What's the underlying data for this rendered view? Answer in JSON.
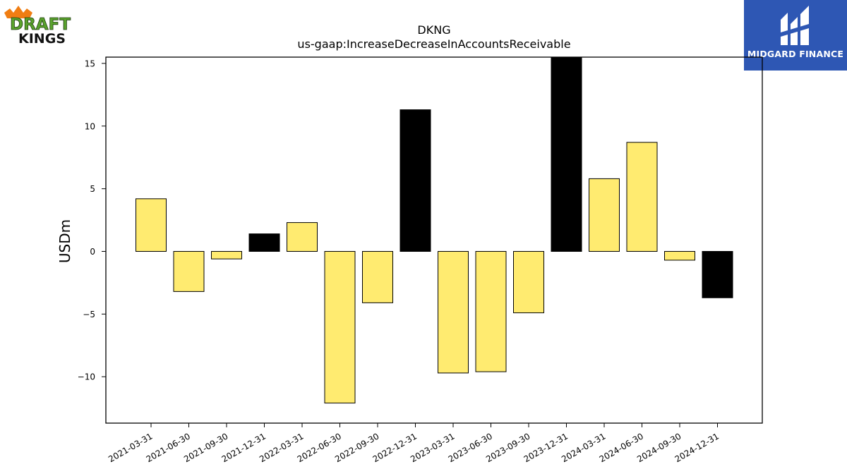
{
  "brand": {
    "left_logo_text": "DRAFT KINGS",
    "right_logo_text": "MIDGARD FINANCE"
  },
  "chart_data": {
    "type": "bar",
    "title": "DKNG",
    "subtitle": "us-gaap:IncreaseDecreaseInAccountsReceivable",
    "xlabel": "",
    "ylabel": "USDm",
    "categories": [
      "2021-03-31",
      "2021-06-30",
      "2021-09-30",
      "2021-12-31",
      "2022-03-31",
      "2022-06-30",
      "2022-09-30",
      "2022-12-31",
      "2023-03-31",
      "2023-06-30",
      "2023-09-30",
      "2023-12-31",
      "2024-03-31",
      "2024-06-30",
      "2024-09-30",
      "2024-12-31"
    ],
    "values": [
      4.2,
      -3.2,
      -0.6,
      1.4,
      2.3,
      -12.1,
      -4.1,
      11.3,
      -9.7,
      -9.6,
      -4.9,
      15.5,
      5.8,
      8.7,
      -0.7,
      -3.7
    ],
    "highlight": [
      false,
      false,
      false,
      true,
      false,
      false,
      false,
      true,
      false,
      false,
      false,
      true,
      false,
      false,
      false,
      true
    ],
    "ylim": [
      -13.7,
      15.5
    ],
    "yticks": [
      -10,
      -5,
      0,
      5,
      10,
      15
    ],
    "ytick_labels": [
      "−10",
      "−5",
      "0",
      "5",
      "10",
      "15"
    ],
    "grid": false,
    "colors": {
      "quarter_bar": "#ffeb70",
      "year_end_bar": "#000000",
      "bar_edge": "#000000"
    }
  }
}
